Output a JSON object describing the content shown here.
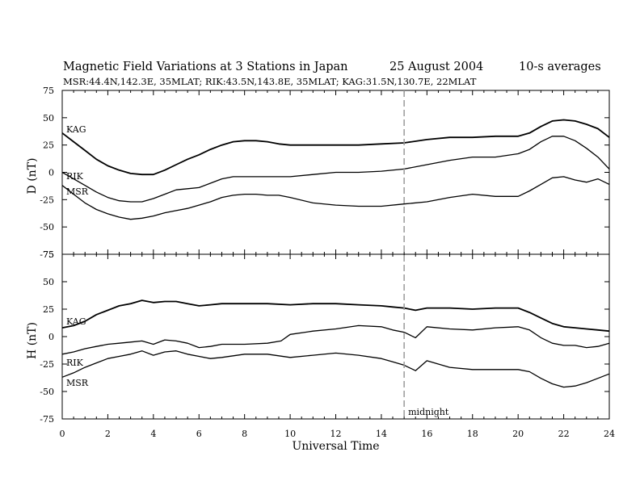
{
  "header": {
    "title": "Magnetic Field Variations at 3 Stations in Japan",
    "date": "25  August  2004",
    "averaging": "10-s averages",
    "stations_line": "MSR:44.4N,142.3E, 35MLAT;  RIK:43.5N,143.8E, 35MLAT;  KAG:31.5N,130.7E, 22MLAT"
  },
  "annotation": {
    "midnight_label": "midnight",
    "midnight_ut": 15
  },
  "chart_data": [
    {
      "type": "line",
      "panel": "D",
      "ylabel": "D (nT)",
      "xlabel": "",
      "xlim": [
        0,
        24
      ],
      "ylim": [
        -75,
        75
      ],
      "xticks": [
        0,
        2,
        4,
        6,
        8,
        10,
        12,
        14,
        16,
        18,
        20,
        22,
        24
      ],
      "yticks": [
        75,
        50,
        25,
        0,
        -25,
        -50,
        -75
      ],
      "grid": false,
      "series": [
        {
          "name": "KAG",
          "x": [
            0,
            0.5,
            1,
            1.5,
            2,
            2.5,
            3,
            3.5,
            4,
            4.5,
            5,
            5.5,
            6,
            6.5,
            7,
            7.5,
            8,
            8.5,
            9,
            9.5,
            10,
            11,
            12,
            13,
            14,
            15,
            16,
            17,
            18,
            19,
            20,
            20.5,
            21,
            21.5,
            22,
            22.5,
            23,
            23.5,
            24
          ],
          "y": [
            36,
            28,
            20,
            12,
            6,
            2,
            -1,
            -2,
            -2,
            2,
            7,
            12,
            16,
            21,
            25,
            28,
            29,
            29,
            28,
            26,
            25,
            25,
            25,
            25,
            26,
            27,
            30,
            32,
            32,
            33,
            33,
            36,
            42,
            47,
            48,
            47,
            44,
            40,
            32
          ]
        },
        {
          "name": "RIK",
          "x": [
            0,
            0.5,
            1,
            1.5,
            2,
            2.5,
            3,
            3.5,
            4,
            4.5,
            5,
            5.5,
            6,
            6.5,
            7,
            7.5,
            8,
            8.5,
            9,
            9.5,
            10,
            11,
            12,
            13,
            14,
            15,
            16,
            17,
            18,
            19,
            20,
            20.5,
            21,
            21.5,
            22,
            22.5,
            23,
            23.5,
            24
          ],
          "y": [
            0,
            -6,
            -12,
            -18,
            -23,
            -26,
            -27,
            -27,
            -24,
            -20,
            -16,
            -15,
            -14,
            -10,
            -6,
            -4,
            -4,
            -4,
            -4,
            -4,
            -4,
            -2,
            0,
            0,
            1,
            3,
            7,
            11,
            14,
            14,
            17,
            21,
            28,
            33,
            33,
            29,
            22,
            14,
            3
          ]
        },
        {
          "name": "MSR",
          "x": [
            0,
            0.5,
            1,
            1.5,
            2,
            2.5,
            3,
            3.5,
            4,
            4.5,
            5,
            5.5,
            6,
            6.5,
            7,
            7.5,
            8,
            8.5,
            9,
            9.5,
            10,
            11,
            12,
            13,
            14,
            15,
            16,
            17,
            18,
            19,
            20,
            20.5,
            21,
            21.5,
            22,
            22.5,
            23,
            23.5,
            24
          ],
          "y": [
            -12,
            -20,
            -28,
            -34,
            -38,
            -41,
            -43,
            -42,
            -40,
            -37,
            -35,
            -33,
            -30,
            -27,
            -23,
            -21,
            -20,
            -20,
            -21,
            -21,
            -23,
            -28,
            -30,
            -31,
            -31,
            -29,
            -27,
            -23,
            -20,
            -22,
            -22,
            -17,
            -11,
            -5,
            -4,
            -7,
            -9,
            -6,
            -11
          ]
        }
      ],
      "labels": [
        "KAG",
        "RIK",
        "MSR"
      ]
    },
    {
      "type": "line",
      "panel": "H",
      "ylabel": "H (nT)",
      "xlabel": "Universal Time",
      "xlim": [
        0,
        24
      ],
      "ylim": [
        -75,
        75
      ],
      "xticks": [
        0,
        2,
        4,
        6,
        8,
        10,
        12,
        14,
        16,
        18,
        20,
        22,
        24
      ],
      "yticks": [
        75,
        50,
        25,
        0,
        -25,
        -50,
        -75
      ],
      "grid": false,
      "series": [
        {
          "name": "KAG",
          "x": [
            0,
            0.5,
            1,
            1.5,
            2,
            2.5,
            3,
            3.5,
            4,
            4.5,
            5,
            5.5,
            6,
            6.5,
            7,
            8,
            9,
            10,
            11,
            12,
            13,
            14,
            14.5,
            15,
            15.5,
            16,
            17,
            18,
            19,
            20,
            20.5,
            21,
            21.5,
            22,
            22.5,
            23,
            23.5,
            24
          ],
          "y": [
            8,
            10,
            14,
            20,
            24,
            28,
            30,
            33,
            31,
            32,
            32,
            30,
            28,
            29,
            30,
            30,
            30,
            29,
            30,
            30,
            29,
            28,
            27,
            26,
            24,
            26,
            26,
            25,
            26,
            26,
            22,
            17,
            12,
            9,
            8,
            7,
            6,
            5
          ]
        },
        {
          "name": "RIK",
          "x": [
            0,
            0.5,
            1,
            1.5,
            2,
            2.5,
            3,
            3.5,
            4,
            4.5,
            5,
            5.5,
            6,
            6.5,
            7,
            8,
            9,
            9.6,
            10,
            11,
            12,
            13,
            14,
            14.5,
            15,
            15.5,
            16,
            17,
            18,
            19,
            20,
            20.5,
            21,
            21.5,
            22,
            22.5,
            23,
            23.5,
            24
          ],
          "y": [
            -16,
            -14,
            -11,
            -9,
            -7,
            -6,
            -5,
            -4,
            -7,
            -3,
            -4,
            -6,
            -10,
            -9,
            -7,
            -7,
            -6,
            -4,
            2,
            5,
            7,
            10,
            9,
            6,
            4,
            -1,
            9,
            7,
            6,
            8,
            9,
            6,
            -1,
            -6,
            -8,
            -8,
            -10,
            -9,
            -6
          ]
        },
        {
          "name": "MSR",
          "x": [
            0,
            0.5,
            1,
            1.5,
            2,
            2.5,
            3,
            3.5,
            4,
            4.5,
            5,
            5.5,
            6,
            6.5,
            7,
            8,
            9,
            10,
            11,
            12,
            13,
            14,
            14.5,
            15,
            15.5,
            16,
            17,
            18,
            19,
            20,
            20.5,
            21,
            21.5,
            22,
            22.5,
            23,
            23.5,
            24
          ],
          "y": [
            -37,
            -33,
            -28,
            -24,
            -20,
            -18,
            -16,
            -13,
            -17,
            -14,
            -13,
            -16,
            -18,
            -20,
            -19,
            -16,
            -16,
            -19,
            -17,
            -15,
            -17,
            -20,
            -23,
            -26,
            -31,
            -22,
            -28,
            -30,
            -30,
            -30,
            -32,
            -38,
            -43,
            -46,
            -45,
            -42,
            -38,
            -34
          ]
        }
      ],
      "labels": [
        "KAG",
        "RIK",
        "MSR"
      ]
    }
  ],
  "colors": {
    "line": "#000000",
    "midnight_line": "#999999",
    "background": "#ffffff"
  }
}
